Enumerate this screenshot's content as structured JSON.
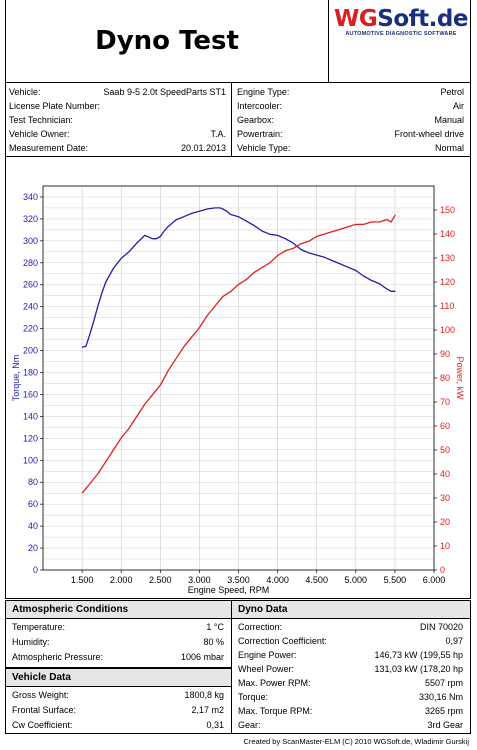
{
  "header": {
    "title": "Dyno Test",
    "logo_brand_red": "WG",
    "logo_brand_blue": "Soft.de",
    "logo_tagline": "AUTOMOTIVE DIAGNOSTIC SOFTWARE"
  },
  "vehicle_info_left": [
    {
      "label": "Vehicle:",
      "value": "Saab 9-5 2.0t SpeedParts ST1"
    },
    {
      "label": "License Plate Number:",
      "value": ""
    },
    {
      "label": "Test Technician:",
      "value": ""
    },
    {
      "label": "Vehicle Owner:",
      "value": "T.A."
    },
    {
      "label": "Measurement Date:",
      "value": "20.01.2013"
    }
  ],
  "vehicle_info_right": [
    {
      "label": "Engine Type:",
      "value": "Petrol"
    },
    {
      "label": "Intercooler:",
      "value": "Air"
    },
    {
      "label": "Gearbox:",
      "value": "Manual"
    },
    {
      "label": "Powertrain:",
      "value": "Front-wheel drive"
    },
    {
      "label": "Vehicle Type:",
      "value": "Normal"
    }
  ],
  "chart_data": {
    "type": "line",
    "xlabel": "Engine Speed, RPM",
    "ylabel_left": "Torque, Nm",
    "ylabel_right": "Power, kW",
    "xlim": [
      1000,
      6000
    ],
    "ylim_left": [
      0,
      350
    ],
    "ylim_right": [
      0,
      160
    ],
    "x_ticks": [
      "1.500",
      "2.000",
      "2.500",
      "3.000",
      "3.500",
      "4.000",
      "4.500",
      "5.000",
      "5.500",
      "6.000"
    ],
    "y_left_ticks": [
      "0",
      "20",
      "40",
      "60",
      "80",
      "100",
      "120",
      "140",
      "160",
      "180",
      "200",
      "220",
      "240",
      "260",
      "280",
      "300",
      "320",
      "340"
    ],
    "y_right_ticks": [
      "0",
      "10",
      "20",
      "30",
      "40",
      "50",
      "60",
      "70",
      "80",
      "90",
      "100",
      "110",
      "120",
      "130",
      "140",
      "150"
    ],
    "grid": true,
    "series": [
      {
        "name": "Torque, Nm",
        "axis": "left",
        "color": "#1f1fa8",
        "x": [
          1500,
          1550,
          1600,
          1650,
          1700,
          1750,
          1800,
          1900,
          2000,
          2100,
          2200,
          2300,
          2400,
          2450,
          2500,
          2550,
          2600,
          2700,
          2800,
          2900,
          3000,
          3100,
          3200,
          3265,
          3300,
          3350,
          3400,
          3500,
          3600,
          3700,
          3800,
          3900,
          4000,
          4100,
          4200,
          4300,
          4400,
          4500,
          4600,
          4700,
          4800,
          4900,
          5000,
          5100,
          5200,
          5300,
          5400,
          5450,
          5507
        ],
        "y": [
          203,
          204,
          215,
          227,
          240,
          252,
          262,
          275,
          284,
          290,
          298,
          305,
          302,
          302,
          304,
          309,
          313,
          319,
          322,
          325,
          327,
          329,
          330,
          330,
          329,
          327,
          324,
          322,
          318,
          314,
          309,
          306,
          305,
          302,
          298,
          292,
          289,
          287,
          285,
          282,
          279,
          276,
          273,
          268,
          264,
          261,
          256,
          254,
          254
        ]
      },
      {
        "name": "Power, kW",
        "axis": "right",
        "color": "#e02020",
        "x": [
          1500,
          1600,
          1700,
          1800,
          1900,
          2000,
          2100,
          2200,
          2300,
          2400,
          2500,
          2600,
          2700,
          2800,
          2900,
          3000,
          3100,
          3200,
          3300,
          3400,
          3500,
          3600,
          3700,
          3800,
          3900,
          4000,
          4100,
          4200,
          4300,
          4400,
          4500,
          4600,
          4700,
          4800,
          4900,
          5000,
          5100,
          5200,
          5300,
          5400,
          5450,
          5507
        ],
        "y": [
          32,
          36,
          40,
          45,
          50,
          55,
          59,
          64,
          69,
          73,
          77,
          83,
          88,
          93,
          97,
          101,
          106,
          110,
          114,
          116,
          119,
          121,
          124,
          126,
          128,
          131,
          133,
          134,
          136,
          137,
          139,
          140,
          141,
          142,
          143,
          144,
          144,
          145,
          145,
          146,
          145,
          148
        ]
      }
    ]
  },
  "atmospheric": {
    "heading": "Atmospheric  Conditions",
    "rows": [
      {
        "label": "Temperature:",
        "value": "1 °C"
      },
      {
        "label": "Humidity:",
        "value": "80 %"
      },
      {
        "label": "Atmospheric Pressure:",
        "value": "1006 mbar"
      }
    ]
  },
  "vehicle_data": {
    "heading": "Vehicle Data",
    "rows": [
      {
        "label": "Gross Weight:",
        "value": "1800,8 kg"
      },
      {
        "label": "Frontal Surface:",
        "value": "2,17 m2"
      },
      {
        "label": "Cw Coefficient:",
        "value": "0,31"
      }
    ]
  },
  "dyno_data": {
    "heading": "Dyno Data",
    "rows": [
      {
        "label": "Correction:",
        "value": "DIN 70020"
      },
      {
        "label": "Correction  Coefficient:",
        "value": "0,97"
      },
      {
        "label": "Engine Power:",
        "value": "146,73 kW (199,55 hp"
      },
      {
        "label": "Wheel Power:",
        "value": "131,03 kW (178,20 hp"
      },
      {
        "label": "Max. Power RPM:",
        "value": "5507 rpm"
      },
      {
        "label": "Torque:",
        "value": "330,16 Nm"
      },
      {
        "label": "Max. Torque RPM:",
        "value": "3265 rpm"
      },
      {
        "label": "Gear:",
        "value": "3rd Gear"
      }
    ]
  },
  "footer": "Created by ScanMaster-ELM (C) 2010 WGSoft.de, Wladimir Gurskij"
}
